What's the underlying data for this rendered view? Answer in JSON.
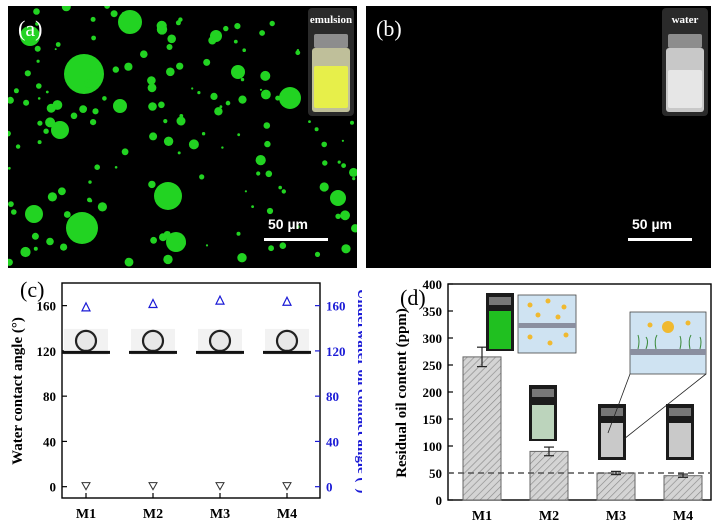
{
  "panels": {
    "a": {
      "label": "(a)",
      "inset_label": "emulsion",
      "scale": "50 µm"
    },
    "b": {
      "label": "(b)",
      "inset_label": "water",
      "scale": "50 µm"
    },
    "c": {
      "label": "(c)"
    },
    "d": {
      "label": "(d)"
    }
  },
  "colors": {
    "droplet": "#22d322",
    "emulsion_vial": "#e7ef4a",
    "right_axis": "#1a1ad6",
    "bar_fill": "#cfcfcf"
  },
  "chart_data": [
    {
      "id": "c",
      "type": "scatter",
      "categories": [
        "M1",
        "M2",
        "M3",
        "M4"
      ],
      "series": [
        {
          "name": "Water contact angle",
          "axis": "left",
          "marker": "triangle-down",
          "values": [
            0,
            0,
            0,
            0
          ]
        },
        {
          "name": "Underwater oil contact angle",
          "axis": "right",
          "marker": "triangle-up",
          "values": [
            158,
            161,
            164,
            163
          ]
        }
      ],
      "ylabel": "Water contact angle (°)",
      "ylabel_right": "Underwater oil contact angle (°)",
      "ylim": [
        -10,
        180
      ],
      "yticks": [
        0,
        40,
        80,
        120,
        160
      ]
    },
    {
      "id": "d",
      "type": "bar",
      "categories": [
        "M1",
        "M2",
        "M3",
        "M4"
      ],
      "values": [
        265,
        90,
        50,
        45
      ],
      "errors": [
        18,
        8,
        3,
        3
      ],
      "reference_line": 50,
      "ylabel": "Residual oil content (ppm)",
      "ylim": [
        0,
        400
      ],
      "yticks": [
        0,
        50,
        100,
        150,
        200,
        250,
        300,
        350,
        400
      ]
    }
  ]
}
